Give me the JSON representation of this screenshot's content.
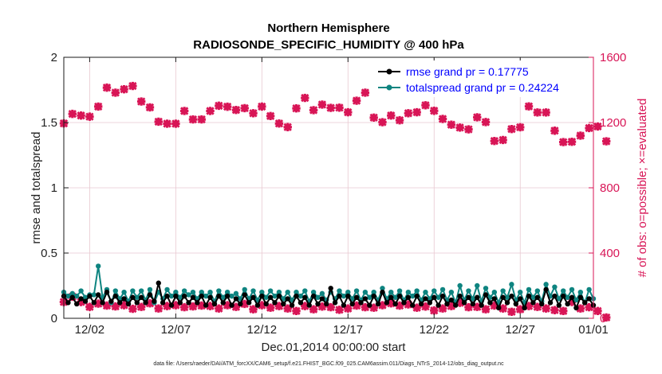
{
  "chart_data": {
    "type": "line",
    "title": [
      "Northern Hemisphere",
      "RADIOSONDE_SPECIFIC_HUMIDITY @ 400 hPa"
    ],
    "xlabel": "Dec.01,2014 00:00:00 start",
    "ylabel_left": "rmse and totalspread",
    "ylabel_right": "# of obs: o=possible; ×=evaluated",
    "footnote": "data file: /Users/raeder/DAI/ATM_forcXX/CAM6_setup/f.e21.FHIST_BGC.f09_025.CAM6assim.011/Diags_NTrS_2014-12/obs_diag_output.nc",
    "xlim": [
      0.5,
      31.25
    ],
    "ylim_left": [
      0,
      2
    ],
    "ylim_right": [
      0,
      1600
    ],
    "xticks": [
      {
        "x": 2,
        "label": "12/02"
      },
      {
        "x": 7,
        "label": "12/07"
      },
      {
        "x": 12,
        "label": "12/12"
      },
      {
        "x": 17,
        "label": "12/17"
      },
      {
        "x": 22,
        "label": "12/22"
      },
      {
        "x": 27,
        "label": "12/27"
      },
      {
        "x": 32,
        "label": "01/01"
      }
    ],
    "yticks_left": [
      0,
      0.5,
      1,
      1.5,
      2
    ],
    "yticks_right": [
      0,
      400,
      800,
      1200,
      1600
    ],
    "colors": {
      "rmse": "#000000",
      "spread": "#0e8480",
      "obs": "#d81556",
      "legend_text": "#0000ff",
      "grid": "#e8c8d0"
    },
    "legend": [
      {
        "name": "rmse grand pr = 0.17775",
        "color": "#000000"
      },
      {
        "name": "totalspread grand pr = 0.24224",
        "color": "#0e8480"
      }
    ],
    "series": [
      {
        "name": "rmse",
        "axis": "left",
        "step": 0.25,
        "x0": 0.5,
        "values": [
          0.17,
          0.12,
          0.16,
          0.11,
          0.15,
          0.13,
          0.17,
          0.12,
          0.18,
          0.12,
          0.2,
          0.13,
          0.17,
          0.12,
          0.15,
          0.11,
          0.16,
          0.12,
          0.16,
          0.12,
          0.18,
          0.13,
          0.27,
          0.12,
          0.17,
          0.1,
          0.17,
          0.12,
          0.17,
          0.12,
          0.16,
          0.12,
          0.17,
          0.1,
          0.16,
          0.11,
          0.17,
          0.12,
          0.17,
          0.1,
          0.15,
          0.11,
          0.18,
          0.12,
          0.16,
          0.1,
          0.17,
          0.11,
          0.16,
          0.12,
          0.17,
          0.11,
          0.15,
          0.1,
          0.17,
          0.12,
          0.16,
          0.1,
          0.17,
          0.11,
          0.15,
          0.11,
          0.23,
          0.12,
          0.17,
          0.1,
          0.17,
          0.11,
          0.16,
          0.12,
          0.15,
          0.1,
          0.17,
          0.11,
          0.2,
          0.12,
          0.16,
          0.11,
          0.17,
          0.12,
          0.16,
          0.1,
          0.17,
          0.11,
          0.15,
          0.12,
          0.16,
          0.1,
          0.17,
          0.11,
          0.14,
          0.1,
          0.17,
          0.12,
          0.16,
          0.11,
          0.16,
          0.1,
          0.18,
          0.12,
          0.15,
          0.08,
          0.16,
          0.12,
          0.17,
          0.11,
          0.15,
          0.08,
          0.17,
          0.12,
          0.16,
          0.11,
          0.22,
          0.12,
          0.17,
          0.1,
          0.17,
          0.11,
          0.16,
          0.08,
          0.16,
          0.12,
          0.15,
          0.1
        ]
      },
      {
        "name": "totalspread",
        "axis": "left",
        "step": 0.25,
        "x0": 0.5,
        "values": [
          0.2,
          0.17,
          0.19,
          0.17,
          0.21,
          0.16,
          0.18,
          0.18,
          0.4,
          0.16,
          0.22,
          0.12,
          0.21,
          0.15,
          0.2,
          0.13,
          0.21,
          0.16,
          0.21,
          0.14,
          0.22,
          0.12,
          0.2,
          0.15,
          0.22,
          0.17,
          0.2,
          0.16,
          0.21,
          0.18,
          0.2,
          0.15,
          0.2,
          0.17,
          0.2,
          0.13,
          0.21,
          0.16,
          0.2,
          0.17,
          0.19,
          0.15,
          0.22,
          0.15,
          0.21,
          0.14,
          0.2,
          0.16,
          0.21,
          0.17,
          0.2,
          0.15,
          0.2,
          0.14,
          0.2,
          0.17,
          0.21,
          0.13,
          0.2,
          0.16,
          0.19,
          0.14,
          0.2,
          0.15,
          0.21,
          0.17,
          0.2,
          0.15,
          0.21,
          0.14,
          0.2,
          0.16,
          0.2,
          0.14,
          0.23,
          0.15,
          0.2,
          0.16,
          0.21,
          0.14,
          0.2,
          0.17,
          0.21,
          0.14,
          0.2,
          0.15,
          0.21,
          0.16,
          0.22,
          0.14,
          0.2,
          0.12,
          0.25,
          0.14,
          0.21,
          0.15,
          0.25,
          0.13,
          0.23,
          0.16,
          0.2,
          0.12,
          0.21,
          0.16,
          0.26,
          0.14,
          0.2,
          0.12,
          0.22,
          0.16,
          0.21,
          0.13,
          0.26,
          0.17,
          0.24,
          0.15,
          0.21,
          0.16,
          0.22,
          0.14,
          0.2,
          0.12,
          0.22,
          0.15
        ]
      },
      {
        "name": "obs possible",
        "axis": "right",
        "step": 0.5,
        "x0": 0.5,
        "values": [
          1195,
          1253,
          1243,
          1236,
          1298,
          1414,
          1383,
          1404,
          1424,
          1329,
          1293,
          1205,
          1193,
          1193,
          1271,
          1219,
          1219,
          1271,
          1303,
          1297,
          1277,
          1288,
          1257,
          1298,
          1240,
          1194,
          1172,
          1287,
          1351,
          1276,
          1310,
          1290,
          1291,
          1263,
          1334,
          1383,
          1230,
          1202,
          1243,
          1214,
          1257,
          1263,
          1306,
          1272,
          1222,
          1187,
          1169,
          1158,
          1232,
          1203,
          1087,
          1093,
          1160,
          1171,
          1299,
          1262,
          1262,
          1150,
          1080,
          1082,
          1120,
          1166,
          1176,
          1085
        ]
      },
      {
        "name": "obs evaluated",
        "axis": "right",
        "step": 0.5,
        "x0": 0.5,
        "values": [
          100,
          132,
          100,
          70,
          90,
          78,
          73,
          80,
          58,
          70,
          92,
          60,
          75,
          80,
          68,
          73,
          78,
          75,
          60,
          80,
          70,
          88,
          55,
          80,
          65,
          75,
          60,
          45,
          75,
          55,
          72,
          68,
          52,
          60,
          78,
          68,
          65,
          80,
          92,
          78,
          85,
          65,
          72,
          48,
          60,
          75,
          95,
          68,
          70,
          55,
          78,
          60,
          40,
          55,
          75,
          70,
          60,
          50,
          45,
          100,
          60,
          68,
          45,
          5
        ]
      }
    ]
  }
}
